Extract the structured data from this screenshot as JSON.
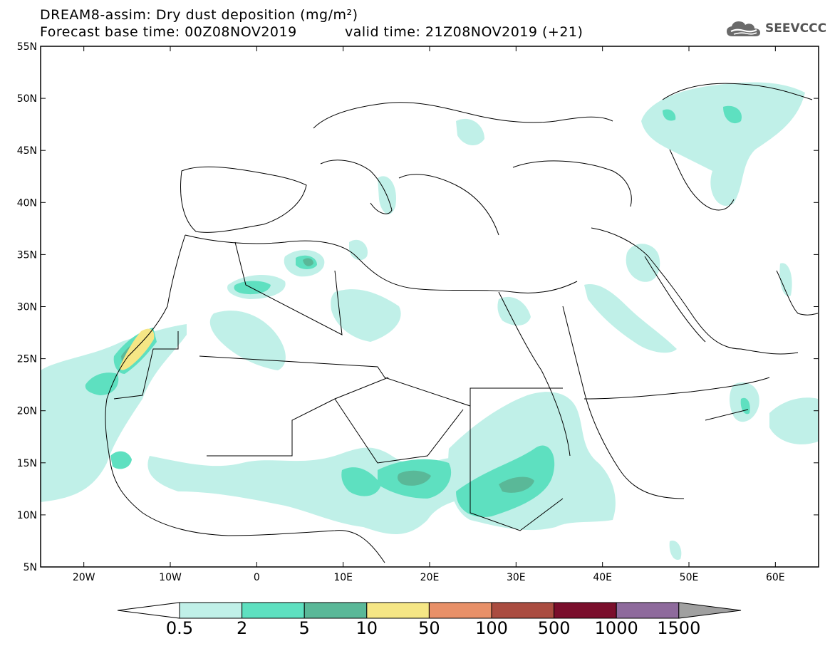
{
  "header": {
    "title_line1": "DREAM8-assim: Dry dust deposition (mg/m²)",
    "title_line2": "Forecast base time: 00Z08NOV2019",
    "valid_time": "valid time: 21Z08NOV2019 (+21)",
    "logo_text": "SEEVCCC"
  },
  "map": {
    "lon_range": [
      -25,
      65
    ],
    "lat_range": [
      5,
      55
    ],
    "lon_ticks": [
      {
        "value": -20,
        "label": "20W"
      },
      {
        "value": -10,
        "label": "10W"
      },
      {
        "value": 0,
        "label": "0"
      },
      {
        "value": 10,
        "label": "10E"
      },
      {
        "value": 20,
        "label": "20E"
      },
      {
        "value": 30,
        "label": "30E"
      },
      {
        "value": 40,
        "label": "40E"
      },
      {
        "value": 50,
        "label": "50E"
      },
      {
        "value": 60,
        "label": "60E"
      }
    ],
    "lat_ticks": [
      {
        "value": 55,
        "label": "55N"
      },
      {
        "value": 50,
        "label": "50N"
      },
      {
        "value": 45,
        "label": "45N"
      },
      {
        "value": 40,
        "label": "40N"
      },
      {
        "value": 35,
        "label": "35N"
      },
      {
        "value": 30,
        "label": "30N"
      },
      {
        "value": 25,
        "label": "25N"
      },
      {
        "value": 20,
        "label": "20N"
      },
      {
        "value": 15,
        "label": "15N"
      },
      {
        "value": 10,
        "label": "10N"
      },
      {
        "value": 5,
        "label": "5N"
      }
    ]
  },
  "legend": {
    "levels": [
      "0.5",
      "2",
      "5",
      "10",
      "50",
      "100",
      "500",
      "1000",
      "1500"
    ],
    "colors": [
      "#c0f0e8",
      "#5ee0c0",
      "#5ab898",
      "#f5e685",
      "#e89068",
      "#aa4c40",
      "#7a0e2c",
      "#8e6a9c"
    ],
    "over_color": "#a0a0a0",
    "under_color": "#ffffff"
  }
}
